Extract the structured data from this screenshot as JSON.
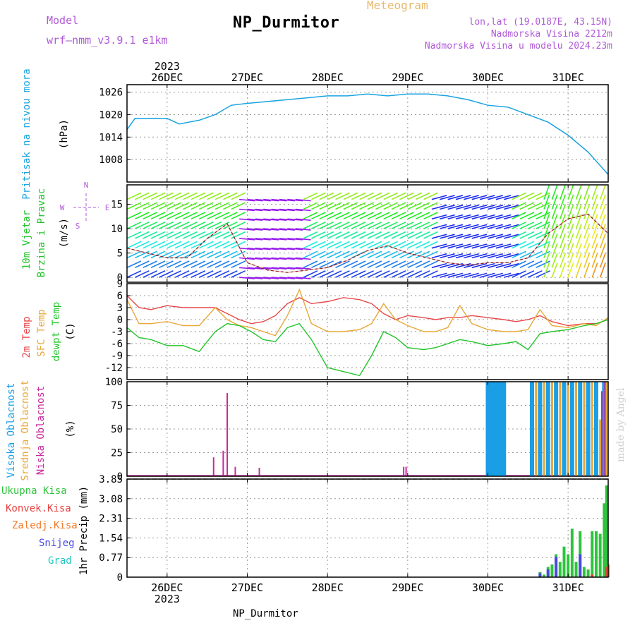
{
  "header": {
    "title": "NP_Durmitor",
    "product": "Meteogram",
    "model_label": "Model",
    "model_name": "wrf—nmm_v3.9.1  e1km",
    "location": "lon,lat (19.0187E, 43.15N)",
    "elevation": "Nadmorska Visina 2212m",
    "model_elevation": "Nadmorska Visina u modelu 2024.23m"
  },
  "footer": {
    "station": "NP_Durmitor"
  },
  "credit": "made by Angel",
  "time_axis": {
    "year": "2023",
    "days": [
      "26DEC",
      "27DEC",
      "28DEC",
      "29DEC",
      "30DEC",
      "31DEC"
    ]
  },
  "wind_key": {
    "north": "N",
    "south": "S",
    "west": "W",
    "east": "E"
  },
  "colors": {
    "pressure": "#1aa3e0",
    "temp2m": "#e8474a",
    "sfc_temp": "#e8a838",
    "dewpoint": "#22c42a",
    "high_cloud": "#1a9ee6",
    "mid_cloud": "#e8a838",
    "low_cloud": "#c8289a",
    "total_precip": "#2ec43c",
    "conv_precip": "#e84040",
    "frozen_precip": "#f07a2a",
    "snow": "#4848e0",
    "hail": "#20c8c0"
  },
  "chart_data": [
    {
      "type": "line",
      "panel": "pressure",
      "ylabel": [
        "Pritisak na nivou mora",
        "(hPa)"
      ],
      "yticks": [
        1008,
        1014,
        1020,
        1026
      ],
      "ylim": [
        1002,
        1028
      ],
      "x": [
        25.5,
        25.6,
        25.75,
        26.0,
        26.15,
        26.4,
        26.6,
        26.8,
        27.0,
        27.25,
        27.5,
        27.75,
        28.0,
        28.25,
        28.5,
        28.75,
        29.0,
        29.25,
        29.5,
        29.75,
        30.0,
        30.25,
        30.5,
        30.75,
        31.0,
        31.25,
        31.5
      ],
      "series": [
        {
          "name": "",
          "values": [
            1016,
            1019,
            1019,
            1019,
            1017.5,
            1018.5,
            1020,
            1022.5,
            1023,
            1023.5,
            1024,
            1024.5,
            1025,
            1025,
            1025.5,
            1025,
            1025.5,
            1025.5,
            1025,
            1024,
            1022.5,
            1022,
            1020,
            1018,
            1014.5,
            1010,
            1004
          ]
        }
      ]
    },
    {
      "type": "line",
      "panel": "wind",
      "ylabel": [
        "10m Vjetar",
        "Brzina i Pravac",
        "(m/s)"
      ],
      "yticks": [
        0,
        5,
        10,
        15
      ],
      "ylim": [
        -1,
        19
      ],
      "x": [
        25.5,
        25.75,
        26.0,
        26.25,
        26.5,
        26.75,
        27.0,
        27.25,
        27.5,
        27.75,
        28.0,
        28.25,
        28.5,
        28.75,
        29.0,
        29.25,
        29.5,
        29.75,
        30.0,
        30.25,
        30.5,
        30.75,
        31.0,
        31.25,
        31.5
      ],
      "series": [
        {
          "name": "",
          "values": [
            6,
            5,
            4,
            4,
            8,
            11,
            3,
            1.5,
            1,
            1.5,
            2,
            3.5,
            5.5,
            6.5,
            5,
            4,
            3,
            2.5,
            3,
            3,
            4,
            9,
            12,
            13,
            9
          ]
        }
      ]
    },
    {
      "type": "line",
      "panel": "temperature",
      "ylabel": [
        "2m Temp",
        "SFC Temp",
        "dewpt Temp",
        "(C)"
      ],
      "yticks": [
        -12,
        -9,
        -6,
        -3,
        0,
        3,
        6,
        9
      ],
      "ylim": [
        -15,
        9
      ],
      "x": [
        25.5,
        25.65,
        25.8,
        26.0,
        26.2,
        26.4,
        26.6,
        26.75,
        26.9,
        27.05,
        27.2,
        27.35,
        27.5,
        27.65,
        27.8,
        28.0,
        28.2,
        28.4,
        28.55,
        28.7,
        28.85,
        29.0,
        29.2,
        29.35,
        29.5,
        29.65,
        29.8,
        30.0,
        30.2,
        30.35,
        30.5,
        30.65,
        30.8,
        31.0,
        31.2,
        31.35,
        31.5
      ],
      "series": [
        {
          "name": "2m Temp",
          "values": [
            6,
            3,
            2.5,
            3.5,
            3,
            3,
            3,
            1.5,
            0,
            -1,
            -0.5,
            1,
            4,
            5.5,
            4,
            4.5,
            5.5,
            5,
            4,
            1.5,
            0,
            1,
            0.5,
            0,
            0.5,
            0.5,
            1,
            0.5,
            0,
            -0.5,
            0,
            1,
            -0.5,
            -1.5,
            -1,
            -1,
            0
          ]
        },
        {
          "name": "SFC Temp",
          "values": [
            5,
            -1,
            -1,
            -0.5,
            -1.5,
            -1.5,
            3,
            0,
            -1.5,
            -2,
            -3,
            -4,
            1,
            7.5,
            -1,
            -3,
            -3,
            -2.5,
            -1,
            4,
            0,
            -1.5,
            -3,
            -3,
            -2,
            3.5,
            -1,
            -2.5,
            -3,
            -3,
            -2.5,
            2.5,
            -1.5,
            -2,
            -1,
            -1.5,
            0.5
          ]
        },
        {
          "name": "dewpt Temp",
          "values": [
            -2,
            -4.5,
            -5,
            -6.5,
            -6.5,
            -8,
            -3,
            -1,
            -1.5,
            -3,
            -5,
            -5.5,
            -2,
            -1,
            -5,
            -12,
            -13,
            -14,
            -9,
            -3,
            -4.5,
            -7,
            -7.5,
            -7,
            -6,
            -5,
            -5.5,
            -6.5,
            -6,
            -5.5,
            -7.5,
            -3.5,
            -3,
            -2.5,
            -1.5,
            -1,
            0
          ]
        }
      ]
    },
    {
      "type": "bar",
      "panel": "cloud",
      "ylabel": [
        "Visoka Oblacnost",
        "Srednja Oblacnost",
        "Niska Oblacnost",
        "(%)"
      ],
      "yticks": [
        0,
        25,
        50,
        75,
        100
      ],
      "ylim": [
        0,
        100
      ],
      "series": [
        {
          "name": "Visoka Oblacnost",
          "x": [
            30.0,
            30.05,
            30.1,
            30.15,
            30.2,
            30.55,
            30.65,
            30.75,
            30.85,
            30.95,
            31.05,
            31.15,
            31.25,
            31.35,
            31.45
          ],
          "values": [
            100,
            100,
            100,
            100,
            100,
            100,
            100,
            100,
            100,
            100,
            100,
            100,
            100,
            100,
            100
          ]
        },
        {
          "name": "Srednja Oblacnost",
          "x": [
            30.6,
            30.7,
            30.8,
            30.9,
            31.0,
            31.1,
            31.2,
            31.3,
            31.4,
            31.48
          ],
          "values": [
            100,
            100,
            100,
            100,
            100,
            100,
            100,
            100,
            60,
            100
          ]
        },
        {
          "name": "Niska Oblacnost",
          "x": [
            26.58,
            26.7,
            26.75,
            26.85,
            27.15,
            28.95,
            28.98,
            31.42,
            31.46
          ],
          "values": [
            20,
            27,
            88,
            10,
            9,
            10,
            10,
            90,
            100
          ]
        }
      ]
    },
    {
      "type": "bar",
      "panel": "precip",
      "ylabel": [
        "Ukupna Kisa",
        "Konvek.Kisa",
        "Zaledj.Kisa",
        "Snijeg",
        "Grad",
        "1hr Precip (mm)"
      ],
      "yticks": [
        0,
        0.77,
        1.54,
        2.31,
        3.08,
        3.85
      ],
      "ylim": [
        0,
        3.85
      ],
      "series": [
        {
          "name": "Ukupna Kisa",
          "x": [
            30.65,
            30.7,
            30.75,
            30.8,
            30.85,
            30.9,
            30.95,
            31.0,
            31.05,
            31.1,
            31.15,
            31.2,
            31.25,
            31.3,
            31.35,
            31.4,
            31.45,
            31.48
          ],
          "values": [
            0.2,
            0.1,
            0.4,
            0.5,
            0.9,
            0.6,
            1.2,
            0.9,
            1.9,
            0.6,
            1.8,
            0.4,
            0.3,
            1.8,
            1.8,
            1.7,
            2.9,
            3.6
          ]
        },
        {
          "name": "Konvek.Kisa",
          "x": [
            31.3,
            31.48
          ],
          "values": [
            0.1,
            0.4
          ]
        },
        {
          "name": "Zaledj.Kisa",
          "x": [
            31.5
          ],
          "values": [
            0.5
          ]
        },
        {
          "name": "Snijeg",
          "x": [
            30.65,
            30.75,
            30.85,
            31.15
          ],
          "values": [
            0.15,
            0.3,
            0.8,
            0.9
          ]
        },
        {
          "name": "Grad",
          "x": [],
          "values": []
        }
      ]
    }
  ]
}
